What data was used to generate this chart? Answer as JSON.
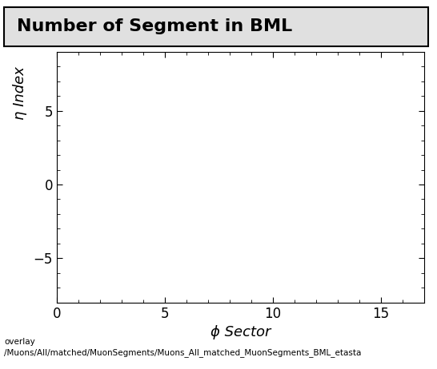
{
  "title": "Number of Segment in BML",
  "xlabel": "ϕ Sector",
  "ylabel": "η Index",
  "xlim": [
    0,
    17
  ],
  "ylim": [
    -8,
    9
  ],
  "xticks": [
    0,
    5,
    10,
    15
  ],
  "yticks": [
    -5,
    0,
    5
  ],
  "background_color": "#ffffff",
  "plot_bg_color": "#ffffff",
  "title_fontsize": 16,
  "label_fontsize": 13,
  "tick_fontsize": 12,
  "footer_line1": "overlay",
  "footer_line2": "/Muons/All/matched/MuonSegments/Muons_All_matched_MuonSegments_BML_etasta",
  "title_box_color": "#e0e0e0"
}
